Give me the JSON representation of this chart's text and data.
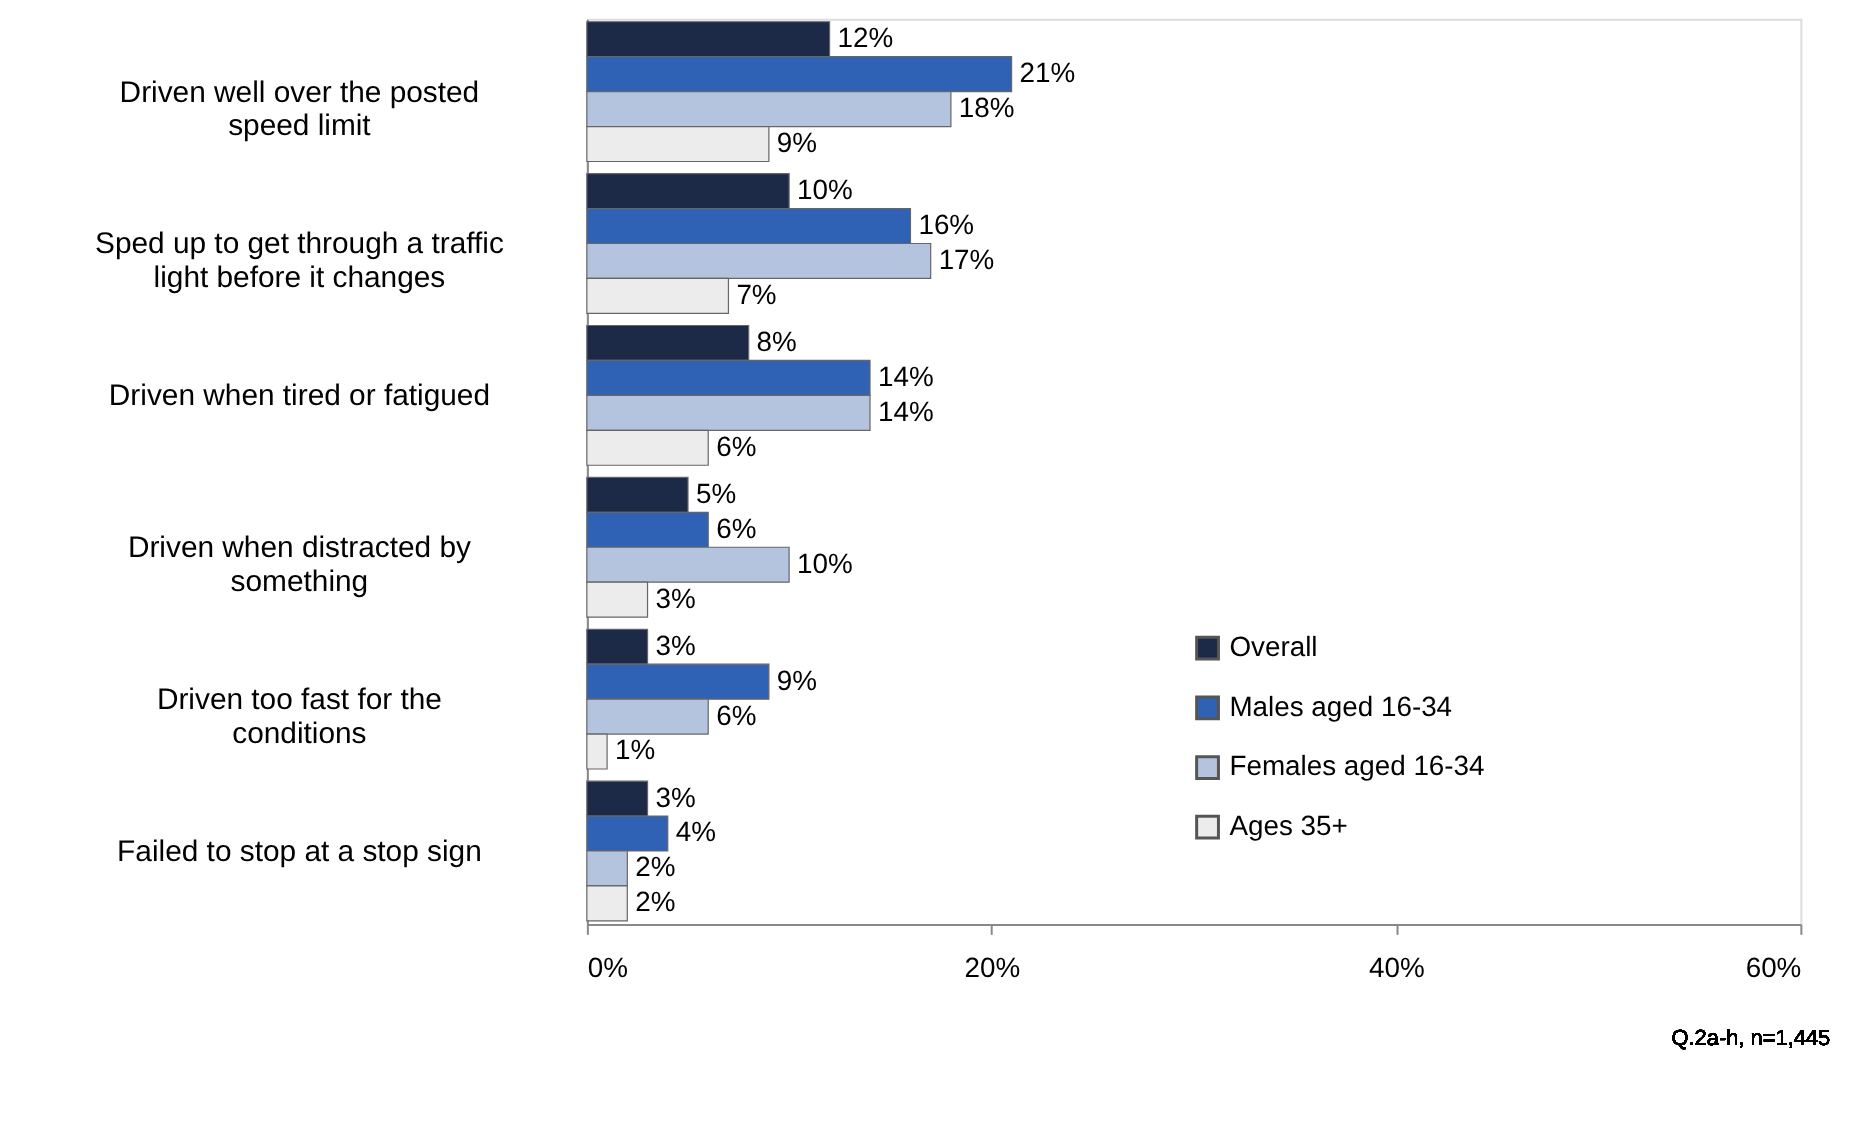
{
  "chart_data": {
    "type": "bar",
    "orientation": "horizontal",
    "categories": [
      "Driven well over the posted speed limit",
      "Sped up to get through a traffic light before it changes",
      "Driven when tired or fatigued",
      "Driven when distracted by something",
      "Driven too fast for the conditions",
      "Failed to stop at a stop sign"
    ],
    "series": [
      {
        "name": "Overall",
        "color": "#1c2a48",
        "values": [
          12,
          10,
          8,
          5,
          3,
          3
        ],
        "value_labels": [
          "12%",
          "10%",
          "8%",
          "5%",
          "3%",
          "3%"
        ]
      },
      {
        "name": "Males aged 16-34",
        "color": "#2f62b4",
        "values": [
          21,
          16,
          14,
          6,
          9,
          4
        ],
        "value_labels": [
          "21%",
          "16%",
          "14%",
          "6%",
          "9%",
          "4%"
        ]
      },
      {
        "name": "Females aged 16-34",
        "color": "#b4c4de",
        "values": [
          18,
          17,
          14,
          10,
          6,
          2
        ],
        "value_labels": [
          "18%",
          "17%",
          "14%",
          "10%",
          "6%",
          "2%"
        ]
      },
      {
        "name": "Ages 35+",
        "color": "#ececec",
        "values": [
          9,
          7,
          6,
          3,
          1,
          2
        ],
        "value_labels": [
          "9%",
          "7%",
          "6%",
          "3%",
          "1%",
          "2%"
        ]
      }
    ],
    "xlim": [
      0,
      60
    ],
    "xticks": [
      {
        "value": 0,
        "label": "0%"
      },
      {
        "value": 20,
        "label": "20%"
      },
      {
        "value": 40,
        "label": "40%"
      },
      {
        "value": 60,
        "label": "60%"
      }
    ],
    "grid": false,
    "legend": "right",
    "annotations": [
      "Q.2a-h, n=1,445"
    ]
  }
}
